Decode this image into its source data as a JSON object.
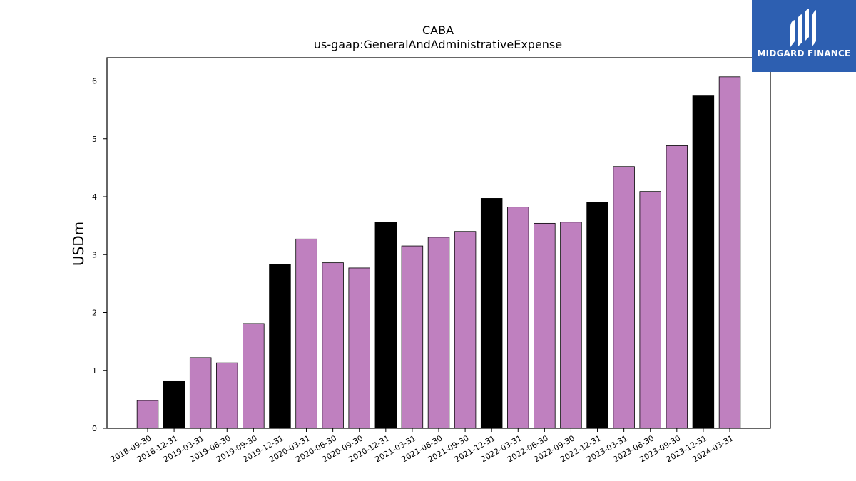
{
  "chart_data": {
    "type": "bar",
    "title": "CABA",
    "subtitle": "us-gaap:GeneralAndAdministrativeExpense",
    "xlabel": "",
    "ylabel": "USDm",
    "ylim": [
      0,
      6.4
    ],
    "yticks": [
      0,
      1,
      2,
      3,
      4,
      5,
      6
    ],
    "grid": false,
    "categories": [
      "2018-09-30",
      "2018-12-31",
      "2019-03-31",
      "2019-06-30",
      "2019-09-30",
      "2019-12-31",
      "2020-03-31",
      "2020-06-30",
      "2020-09-30",
      "2020-12-31",
      "2021-03-31",
      "2021-06-30",
      "2021-09-30",
      "2021-12-31",
      "2022-03-31",
      "2022-06-30",
      "2022-09-30",
      "2022-12-31",
      "2023-03-31",
      "2023-06-30",
      "2023-09-30",
      "2023-12-31",
      "2024-03-31"
    ],
    "values": [
      0.48,
      0.82,
      1.22,
      1.13,
      1.81,
      2.83,
      3.27,
      2.86,
      2.77,
      3.56,
      3.15,
      3.3,
      3.4,
      3.97,
      3.82,
      3.54,
      3.56,
      3.9,
      4.52,
      4.09,
      4.88,
      5.74,
      6.07
    ],
    "colors": {
      "quarter": "#bf80bf",
      "year_end": "#000000",
      "edge": "#000000"
    }
  },
  "logo": {
    "text": "MIDGARD FINANCE",
    "background": "#2d5fb1"
  }
}
